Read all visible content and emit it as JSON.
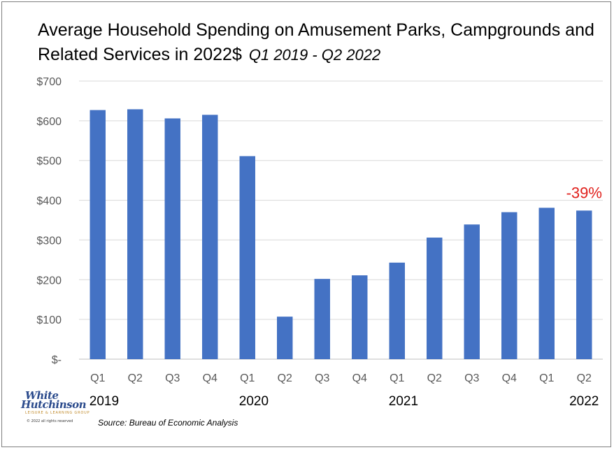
{
  "title_main": "Average Household Spending on Amusement Parks, Campgrounds and Related Services in 2022$",
  "title_period": "Q1 2019 - Q2 2022",
  "source": "Source: Bureau of Economic Analysis",
  "logo": {
    "line1": "White",
    "line2": "Hutchinson",
    "tagline": "LEISURE & LEARNING GROUP",
    "copyright": "© 2022 all rights reserved"
  },
  "chart_data": {
    "type": "bar",
    "categories": [
      "Q1",
      "Q2",
      "Q3",
      "Q4",
      "Q1",
      "Q2",
      "Q3",
      "Q4",
      "Q1",
      "Q2",
      "Q3",
      "Q4",
      "Q1",
      "Q2"
    ],
    "years": [
      {
        "label": "2019",
        "start": 0
      },
      {
        "label": "2020",
        "start": 4
      },
      {
        "label": "2021",
        "start": 8
      },
      {
        "label": "2022",
        "start": 12
      }
    ],
    "values": [
      627,
      629,
      606,
      615,
      511,
      107,
      202,
      211,
      243,
      306,
      339,
      370,
      381,
      374
    ],
    "ylim": [
      0,
      700
    ],
    "yticks": [
      0,
      100,
      200,
      300,
      400,
      500,
      600,
      700
    ],
    "ytick_labels": [
      "$-",
      "$100",
      "$200",
      "$300",
      "$400",
      "$500",
      "$600",
      "$700"
    ],
    "grid": true,
    "bar_color": "#4472c4",
    "annotation": {
      "text": "-39%",
      "index": 13,
      "color": "#e0201c"
    }
  }
}
